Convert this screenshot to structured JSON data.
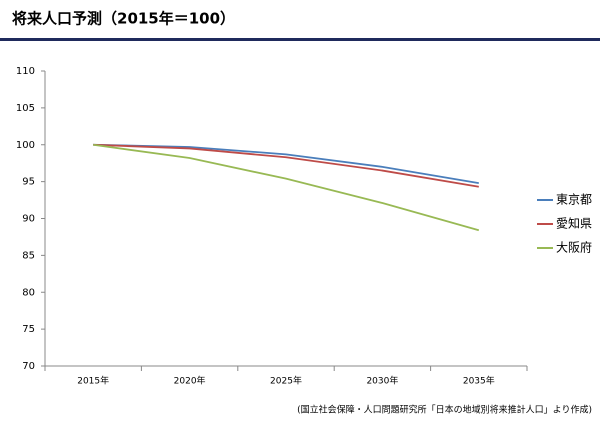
{
  "chart_data": {
    "type": "line",
    "title": "将来人口予測（2015年＝100）",
    "categories": [
      "2015年",
      "2020年",
      "2025年",
      "2030年",
      "2035年"
    ],
    "series": [
      {
        "name": "東京都",
        "color": "#4a7ebb",
        "values": [
          100,
          99.7,
          98.7,
          97.0,
          94.8
        ]
      },
      {
        "name": "愛知県",
        "color": "#be4b48",
        "values": [
          100,
          99.5,
          98.3,
          96.5,
          94.3
        ]
      },
      {
        "name": "大阪府",
        "color": "#98b954",
        "values": [
          100,
          98.2,
          95.4,
          92.1,
          88.4
        ]
      }
    ],
    "ylim": [
      70,
      110
    ],
    "yticks": [
      70,
      75,
      80,
      85,
      90,
      95,
      100,
      105,
      110
    ],
    "note": "(国立社会保障・人口問題研究所「日本の地域別将来推計人口」より作成)"
  }
}
